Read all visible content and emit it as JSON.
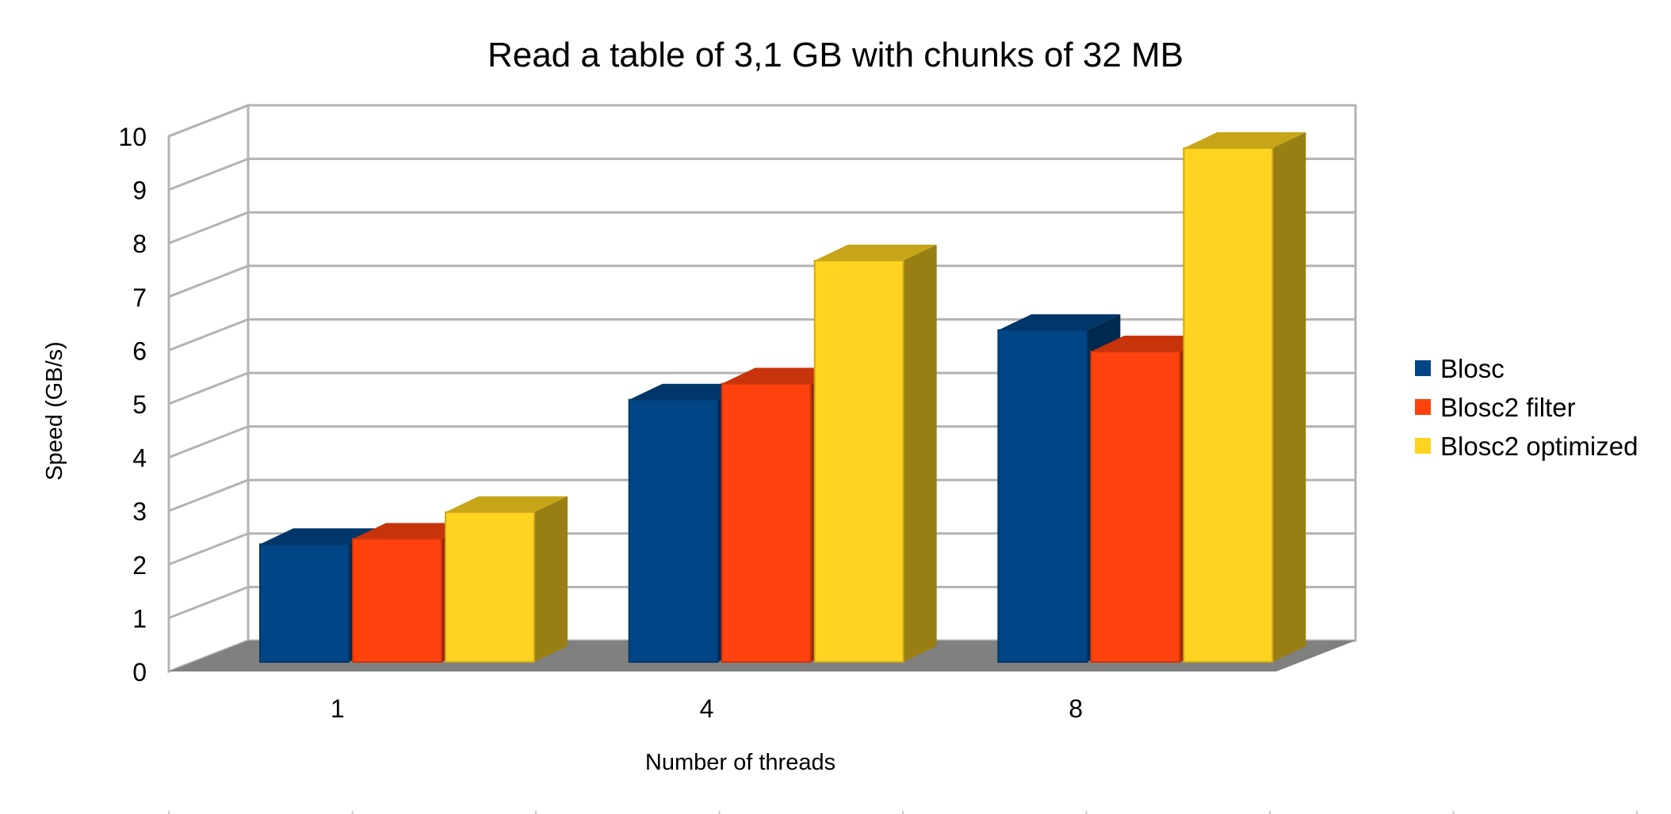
{
  "chart_data": {
    "type": "bar",
    "title": "Read a table of 3,1 GB with chunks of 32 MB",
    "xlabel": "Number of threads",
    "ylabel": "Speed (GB/s)",
    "ylim": [
      0,
      10
    ],
    "yticks": [
      "0",
      "1",
      "2",
      "3",
      "4",
      "5",
      "6",
      "7",
      "8",
      "9",
      "10"
    ],
    "categories": [
      "1",
      "4",
      "8"
    ],
    "series": [
      {
        "name": "Blosc",
        "values": [
          2.2,
          4.9,
          6.2
        ],
        "color": "#004586"
      },
      {
        "name": "Blosc2 filter",
        "values": [
          2.3,
          5.2,
          5.8
        ],
        "color": "#ff420e"
      },
      {
        "name": "Blosc2 optimized",
        "values": [
          2.8,
          7.5,
          9.6
        ],
        "color": "#ffd320"
      }
    ],
    "grid": true,
    "three_d": true,
    "legend": "right"
  }
}
